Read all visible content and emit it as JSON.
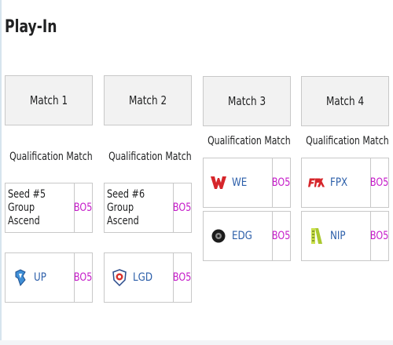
{
  "page": {
    "title": "Play-In"
  },
  "matches": [
    {
      "title": "Match 1",
      "type": "Qualification Match",
      "teams": [
        {
          "kind": "seed",
          "name": "Seed #5 Group Ascend",
          "format": "BO5"
        },
        {
          "kind": "team",
          "name": "UP",
          "logo": "up-logo-icon",
          "format": "BO5"
        }
      ]
    },
    {
      "title": "Match 2",
      "type": "Qualification Match",
      "teams": [
        {
          "kind": "seed",
          "name": "Seed #6 Group Ascend",
          "format": "BO5"
        },
        {
          "kind": "team",
          "name": "LGD",
          "logo": "lgd-logo-icon",
          "format": "BO5"
        }
      ]
    },
    {
      "title": "Match 3",
      "type": "Qualification Match",
      "teams": [
        {
          "kind": "team",
          "name": "WE",
          "logo": "we-logo-icon",
          "format": "BO5"
        },
        {
          "kind": "team",
          "name": "EDG",
          "logo": "edg-logo-icon",
          "format": "BO5"
        }
      ]
    },
    {
      "title": "Match 4",
      "type": "Qualification Match",
      "teams": [
        {
          "kind": "team",
          "name": "FPX",
          "logo": "fpx-logo-icon",
          "format": "BO5"
        },
        {
          "kind": "team",
          "name": "NIP",
          "logo": "nip-logo-icon",
          "format": "BO5"
        }
      ]
    }
  ],
  "colors": {
    "format": "#c51ac9",
    "team_link": "#2b5ea9",
    "header_bg": "#f2f2f2",
    "border": "#c8c8c8"
  }
}
